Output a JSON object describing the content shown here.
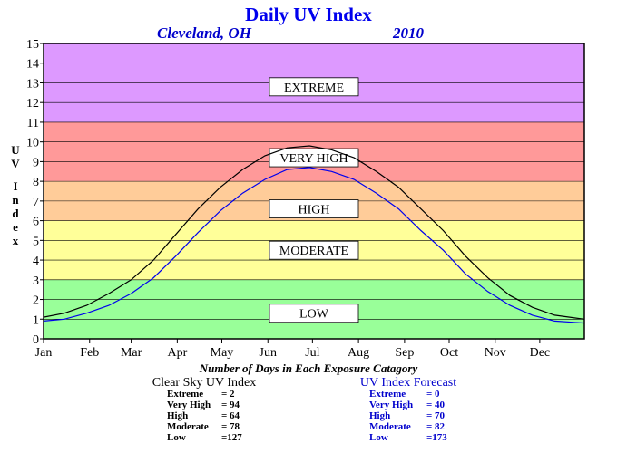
{
  "chart_data": {
    "type": "line",
    "title": "Daily UV Index",
    "location": "Cleveland, OH",
    "year": "2010",
    "ylabel": "UV Index",
    "xlabel": "",
    "ylim": [
      0,
      15
    ],
    "yticks": [
      "0",
      "1",
      "2",
      "3",
      "4",
      "5",
      "6",
      "7",
      "8",
      "9",
      "10",
      "11",
      "12",
      "13",
      "14",
      "15"
    ],
    "month_labels": [
      "Jan",
      "Feb",
      "Mar",
      "Apr",
      "May",
      "Jun",
      "Jul",
      "Aug",
      "Sep",
      "Oct",
      "Nov",
      "Dec"
    ],
    "grid": true,
    "bands": [
      {
        "label": "LOW",
        "from": 0,
        "to": 3,
        "color": "#99ff99",
        "label_y": 1.3
      },
      {
        "label": "MODERATE",
        "from": 3,
        "to": 6,
        "color": "#ffff99",
        "label_y": 4.5
      },
      {
        "label": "HIGH",
        "from": 6,
        "to": 8,
        "color": "#ffcc99",
        "label_y": 6.6
      },
      {
        "label": "VERY HIGH",
        "from": 8,
        "to": 11,
        "color": "#ff9999",
        "label_y": 9.2
      },
      {
        "label": "EXTREME",
        "from": 11,
        "to": 15,
        "color": "#dd99ff",
        "label_y": 12.8
      }
    ],
    "series": [
      {
        "name": "Clear Sky UV Index",
        "color": "#000000",
        "x": [
          1,
          15,
          30,
          45,
          60,
          75,
          90,
          105,
          120,
          135,
          150,
          165,
          180,
          195,
          210,
          225,
          240,
          255,
          270,
          285,
          300,
          315,
          330,
          345,
          365
        ],
        "y": [
          1.1,
          1.3,
          1.7,
          2.3,
          3.0,
          4.0,
          5.3,
          6.6,
          7.7,
          8.6,
          9.3,
          9.7,
          9.8,
          9.6,
          9.2,
          8.5,
          7.7,
          6.6,
          5.5,
          4.2,
          3.1,
          2.2,
          1.6,
          1.2,
          1.0
        ]
      },
      {
        "name": "UV Index Forecast",
        "color": "#0000ee",
        "x": [
          1,
          15,
          30,
          45,
          60,
          75,
          90,
          105,
          120,
          135,
          150,
          165,
          180,
          195,
          210,
          225,
          240,
          255,
          270,
          285,
          300,
          315,
          330,
          345,
          365
        ],
        "y": [
          0.9,
          1.0,
          1.3,
          1.7,
          2.3,
          3.1,
          4.2,
          5.4,
          6.5,
          7.4,
          8.1,
          8.6,
          8.7,
          8.5,
          8.1,
          7.4,
          6.6,
          5.5,
          4.5,
          3.3,
          2.4,
          1.7,
          1.2,
          0.9,
          0.8
        ]
      }
    ]
  },
  "stats": {
    "heading": "Number of Days in Each Exposure Catagory",
    "clear_sky": {
      "title": "Clear Sky UV Index",
      "rows": [
        {
          "label": "Extreme",
          "value": "= 2"
        },
        {
          "label": "Very High",
          "value": "= 94"
        },
        {
          "label": "High",
          "value": "= 64"
        },
        {
          "label": "Moderate",
          "value": "= 78"
        },
        {
          "label": "Low",
          "value": "=127"
        }
      ]
    },
    "forecast": {
      "title": "UV Index Forecast",
      "rows": [
        {
          "label": "Extreme",
          "value": "= 0"
        },
        {
          "label": "Very High",
          "value": "= 40"
        },
        {
          "label": "High",
          "value": "= 70"
        },
        {
          "label": "Moderate",
          "value": "= 82"
        },
        {
          "label": "Low",
          "value": "=173"
        }
      ]
    }
  }
}
